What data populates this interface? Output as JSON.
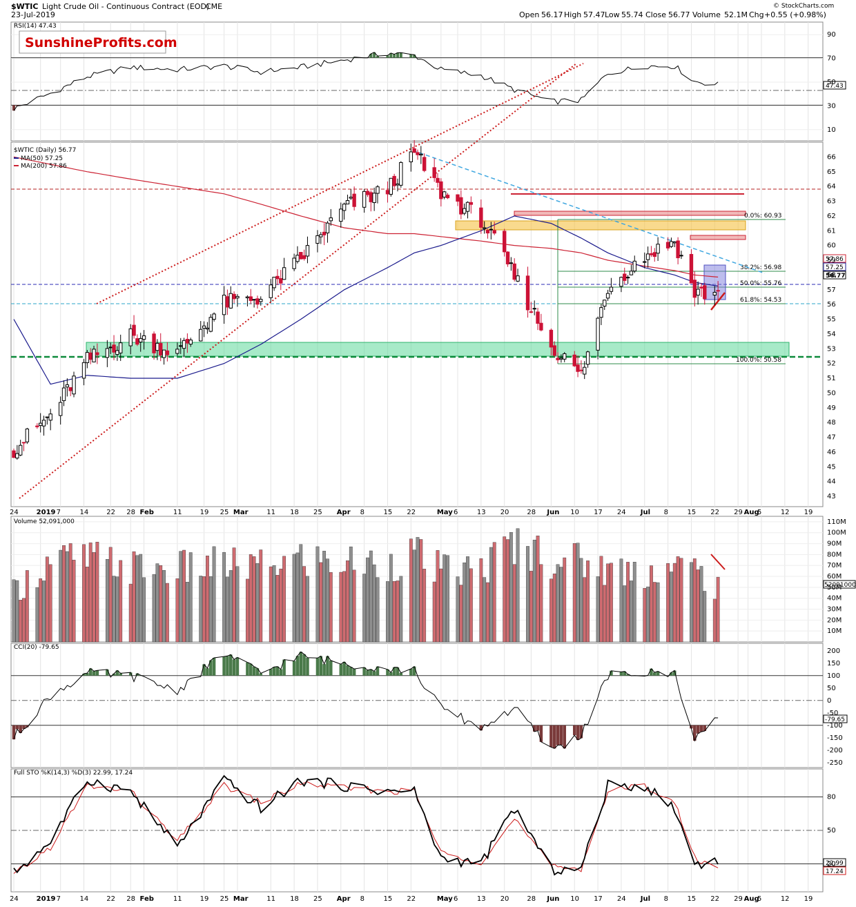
{
  "header": {
    "symbol": "$WTIC",
    "description": "Light Crude Oil - Continuous Contract (EOD)",
    "exchange": "CME",
    "date": "23-Jul-2019",
    "source": "© StockCharts.com",
    "open_label": "Open",
    "open": "56.17",
    "high_label": "High",
    "high": "57.47",
    "low_label": "Low",
    "low": "55.74",
    "close_label": "Close",
    "close": "56.77",
    "volume_label": "Volume",
    "volume": "52.1M",
    "chg_label": "Chg",
    "chg": "+0.55 (+0.98%)"
  },
  "watermark": "SunshineProfits.com",
  "colors": {
    "up": "#ffffff",
    "down": "#cc1236",
    "ma50": "#1a1a8c",
    "ma200": "#cc2233",
    "vol_up": "#8f8f8f",
    "vol_down": "#cf6b70",
    "fill_pos": "#4a7a4a",
    "fill_neg": "#7a3a3a",
    "support_zone": "#5fd89a",
    "resistance_zone": "#f5c242"
  },
  "chart_data": [
    {
      "type": "line",
      "title": "RSI(14) 47.43",
      "y_ticks": [
        90,
        70,
        50,
        30,
        10
      ],
      "ylim": [
        0,
        100
      ],
      "reference_lines": [
        70,
        30
      ],
      "last_value_label": "47.43",
      "x": [
        "2018-12-24",
        "2019-01-04",
        "2019-01-15",
        "2019-01-28",
        "2019-02-11",
        "2019-02-25",
        "2019-03-08",
        "2019-03-20",
        "2019-04-02",
        "2019-04-15",
        "2019-04-23",
        "2019-05-01",
        "2019-05-13",
        "2019-05-23",
        "2019-06-03",
        "2019-06-12",
        "2019-06-20",
        "2019-07-01",
        "2019-07-10",
        "2019-07-16",
        "2019-07-23"
      ],
      "values": [
        27,
        40,
        54,
        62,
        60,
        63,
        58,
        62,
        68,
        74,
        72,
        60,
        55,
        43,
        33,
        34,
        57,
        63,
        63,
        50,
        47.43
      ]
    },
    {
      "type": "candlestick",
      "title": "$WTIC (Daily) 56.77",
      "legend": [
        {
          "name": "MA(50) 57.25",
          "color": "#1a1a8c"
        },
        {
          "name": "MA(200) 57.86",
          "color": "#cc2233"
        }
      ],
      "y_ticks": [
        43,
        44,
        45,
        46,
        47,
        48,
        49,
        50,
        51,
        52,
        53,
        54,
        55,
        56,
        57,
        58,
        59,
        60,
        61,
        62,
        63,
        64,
        65,
        66
      ],
      "ylim": [
        42.3,
        67
      ],
      "fib_labels": [
        "0.0%: 60.93",
        "38.2%: 56.98",
        "50.0%: 55.76",
        "61.8%: 54.53",
        "100.0%: 50.58"
      ],
      "price_tags": [
        "57.86",
        "57.25",
        "56.77"
      ],
      "x": [
        "2018-12-24",
        "2019-01-04",
        "2019-01-15",
        "2019-01-28",
        "2019-02-11",
        "2019-02-25",
        "2019-03-08",
        "2019-03-20",
        "2019-04-02",
        "2019-04-15",
        "2019-04-23",
        "2019-05-01",
        "2019-05-13",
        "2019-05-23",
        "2019-06-03",
        "2019-06-12",
        "2019-06-20",
        "2019-07-01",
        "2019-07-10",
        "2019-07-16",
        "2019-07-23"
      ],
      "close": [
        46.2,
        48.5,
        52.2,
        53.9,
        52.7,
        56.1,
        56.5,
        59.1,
        62.6,
        63.8,
        66.3,
        63.6,
        61.8,
        57.9,
        53.2,
        51.2,
        57.2,
        59.3,
        60.3,
        56.8,
        56.77
      ],
      "ma50": [
        55,
        50.6,
        51.2,
        51.0,
        51.0,
        52.0,
        53.3,
        55.0,
        57.0,
        58.5,
        59.5,
        60.0,
        61.0,
        62.0,
        61.5,
        60.5,
        59.5,
        58.5,
        58.0,
        57.5,
        57.25
      ],
      "ma200": [
        66,
        65.5,
        65,
        64.5,
        64,
        63.5,
        62.8,
        62,
        61.2,
        60.8,
        60.8,
        60.6,
        60.3,
        60.0,
        59.8,
        59.5,
        59.0,
        58.6,
        58.3,
        58.0,
        57.86
      ]
    },
    {
      "type": "bar",
      "title": "Volume 52,091,000",
      "y_ticks": [
        "110M",
        "100M",
        "90M",
        "80M",
        "70M",
        "60M",
        "50M",
        "40M",
        "30M",
        "20M",
        "10M"
      ],
      "last_value_label": "52091000",
      "x": [
        "2018-12-24",
        "2019-01-04",
        "2019-01-15",
        "2019-01-28",
        "2019-02-11",
        "2019-02-25",
        "2019-03-08",
        "2019-03-20",
        "2019-04-02",
        "2019-04-15",
        "2019-04-23",
        "2019-05-01",
        "2019-05-13",
        "2019-05-23",
        "2019-06-03",
        "2019-06-12",
        "2019-06-20",
        "2019-07-01",
        "2019-07-10",
        "2019-07-16",
        "2019-07-23"
      ],
      "values": [
        48,
        78,
        80,
        72,
        70,
        74,
        72,
        80,
        76,
        75,
        85,
        68,
        70,
        95,
        82,
        78,
        70,
        68,
        72,
        70,
        52.1
      ]
    },
    {
      "type": "line",
      "title": "CCI(20) -79.65",
      "y_ticks": [
        200,
        150,
        100,
        50,
        0,
        -50,
        -100,
        -150,
        -200,
        -250
      ],
      "reference_lines": [
        100,
        -100
      ],
      "last_value_label": "-79.65",
      "x": [
        "2018-12-24",
        "2019-01-04",
        "2019-01-15",
        "2019-01-28",
        "2019-02-11",
        "2019-02-25",
        "2019-03-08",
        "2019-03-20",
        "2019-04-02",
        "2019-04-15",
        "2019-04-23",
        "2019-05-01",
        "2019-05-13",
        "2019-05-23",
        "2019-06-03",
        "2019-06-12",
        "2019-06-20",
        "2019-07-01",
        "2019-07-10",
        "2019-07-16",
        "2019-07-23"
      ],
      "values": [
        -150,
        20,
        110,
        100,
        40,
        190,
        110,
        180,
        150,
        130,
        120,
        -30,
        -110,
        -30,
        -200,
        -140,
        100,
        110,
        110,
        -150,
        -79.65
      ]
    },
    {
      "type": "line",
      "title": "Full STO %K(14,3) %D(3) 22.99, 17.24",
      "y_ticks": [
        80,
        50,
        20
      ],
      "reference_lines": [
        80,
        20
      ],
      "last_value_labels": [
        "22.99",
        "17.24"
      ],
      "x": [
        "2018-12-24",
        "2019-01-04",
        "2019-01-15",
        "2019-01-28",
        "2019-02-11",
        "2019-02-25",
        "2019-03-08",
        "2019-03-20",
        "2019-04-02",
        "2019-04-15",
        "2019-04-23",
        "2019-05-01",
        "2019-05-13",
        "2019-05-23",
        "2019-06-03",
        "2019-06-12",
        "2019-06-20",
        "2019-07-01",
        "2019-07-10",
        "2019-07-16",
        "2019-07-23"
      ],
      "k": [
        12,
        40,
        95,
        85,
        35,
        95,
        70,
        95,
        90,
        85,
        85,
        25,
        20,
        70,
        15,
        15,
        90,
        90,
        70,
        20,
        22.99
      ],
      "d": [
        10,
        35,
        90,
        85,
        40,
        90,
        75,
        92,
        88,
        85,
        85,
        30,
        22,
        60,
        18,
        16,
        85,
        90,
        75,
        25,
        17.24
      ]
    }
  ],
  "x_axis_labels": [
    "24",
    "2019",
    "7",
    "14",
    "22",
    "28",
    "Feb",
    "11",
    "19",
    "25",
    "Mar",
    "11",
    "18",
    "25",
    "Apr",
    "8",
    "15",
    "22",
    "May",
    "6",
    "13",
    "20",
    "28",
    "Jun",
    "10",
    "17",
    "24",
    "Jul",
    "8",
    "15",
    "22",
    "29",
    "Aug",
    "5",
    "12",
    "19"
  ]
}
